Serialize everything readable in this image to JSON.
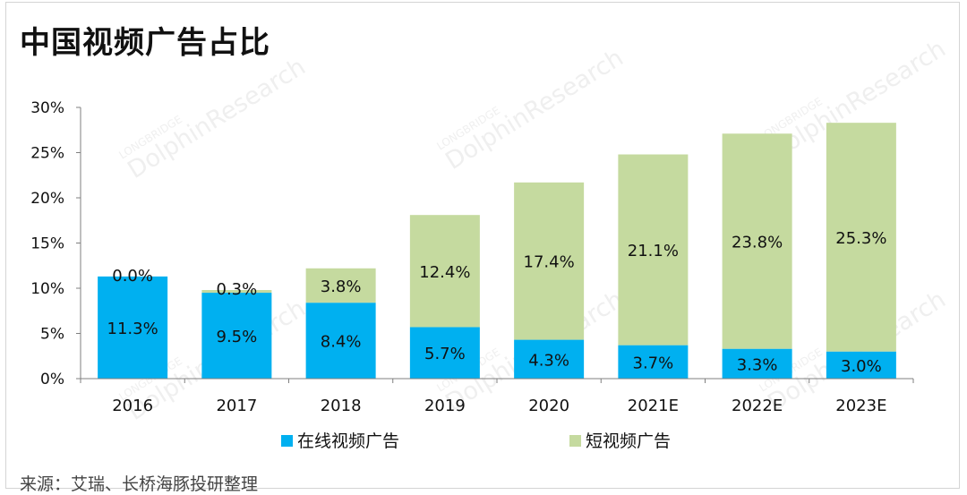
{
  "title": "中国视频广告占比",
  "source": "来源：艾瑞、长桥海豚投研整理",
  "watermark": {
    "brand": "LONGBRIDGE",
    "name": "DolphinResearch"
  },
  "colors": {
    "online": "#00B0F0",
    "short": "#C5DA9F",
    "axis": "#7f7f7f",
    "text": "#111111"
  },
  "chart_data": {
    "type": "bar",
    "stacked": true,
    "title": "中国视频广告占比",
    "categories": [
      "2016",
      "2017",
      "2018",
      "2019",
      "2020",
      "2021E",
      "2022E",
      "2023E"
    ],
    "series": [
      {
        "name": "在线视频广告",
        "values": [
          11.3,
          9.5,
          8.4,
          5.7,
          4.3,
          3.7,
          3.3,
          3.0
        ],
        "labels": [
          "11.3%",
          "9.5%",
          "8.4%",
          "5.7%",
          "4.3%",
          "3.7%",
          "3.3%",
          "3.0%"
        ]
      },
      {
        "name": "短视频广告",
        "values": [
          0.0,
          0.3,
          3.8,
          12.4,
          17.4,
          21.1,
          23.8,
          25.3
        ],
        "labels": [
          "0.0%",
          "0.3%",
          "3.8%",
          "12.4%",
          "17.4%",
          "21.1%",
          "23.8%",
          "25.3%"
        ]
      }
    ],
    "y_ticks": [
      "0%",
      "5%",
      "10%",
      "15%",
      "20%",
      "25%",
      "30%"
    ],
    "ylim": [
      0,
      30
    ],
    "grid": false,
    "legend": "bottom"
  }
}
